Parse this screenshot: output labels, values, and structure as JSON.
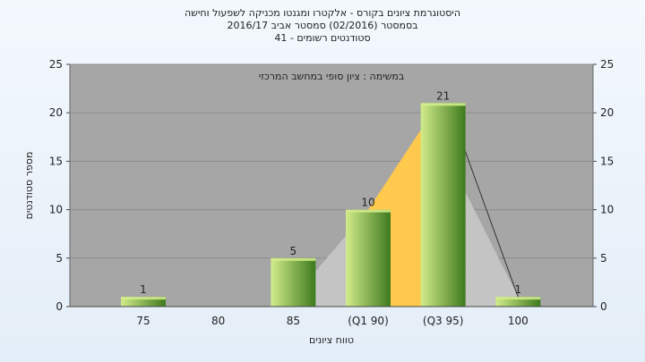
{
  "title_lines": [
    "היסטוגרמת ציונים בקורס - אלקטרו ומגנטו מכניקה לשפעול וחישה",
    "בסמסטר  (02/2016)  סמסטר אביב 2016/17",
    "סטודנטים רשומים - 41"
  ],
  "subtitle": "במשימה : ציון סופי במחשב המרכזי",
  "chart_data": {
    "type": "bar",
    "categories": [
      "75",
      "80",
      "85",
      "(Q1 90)",
      "(Q3 95)",
      "100"
    ],
    "values": [
      1,
      0,
      5,
      10,
      21,
      1
    ],
    "data_labels": [
      "1",
      "",
      "5",
      "10",
      "21",
      "1"
    ],
    "xlabel": "טווח ציונים",
    "ylabel": "מספר סטודנטים",
    "ylim": [
      0,
      25
    ],
    "yticks": [
      0,
      5,
      10,
      15,
      20,
      25
    ],
    "grid": true,
    "box_plot": {
      "from_category": "85",
      "to_category": "100",
      "q1_category": "(Q1 90)",
      "q3_category": "(Q3 95)"
    },
    "colors": {
      "plot_bg": "#a6a6a6",
      "bar_light": "#d2ec8a",
      "bar_dark": "#3e7a1e",
      "box_fill": "#c4c4c4",
      "iqr_fill": "#ffc94d"
    }
  }
}
